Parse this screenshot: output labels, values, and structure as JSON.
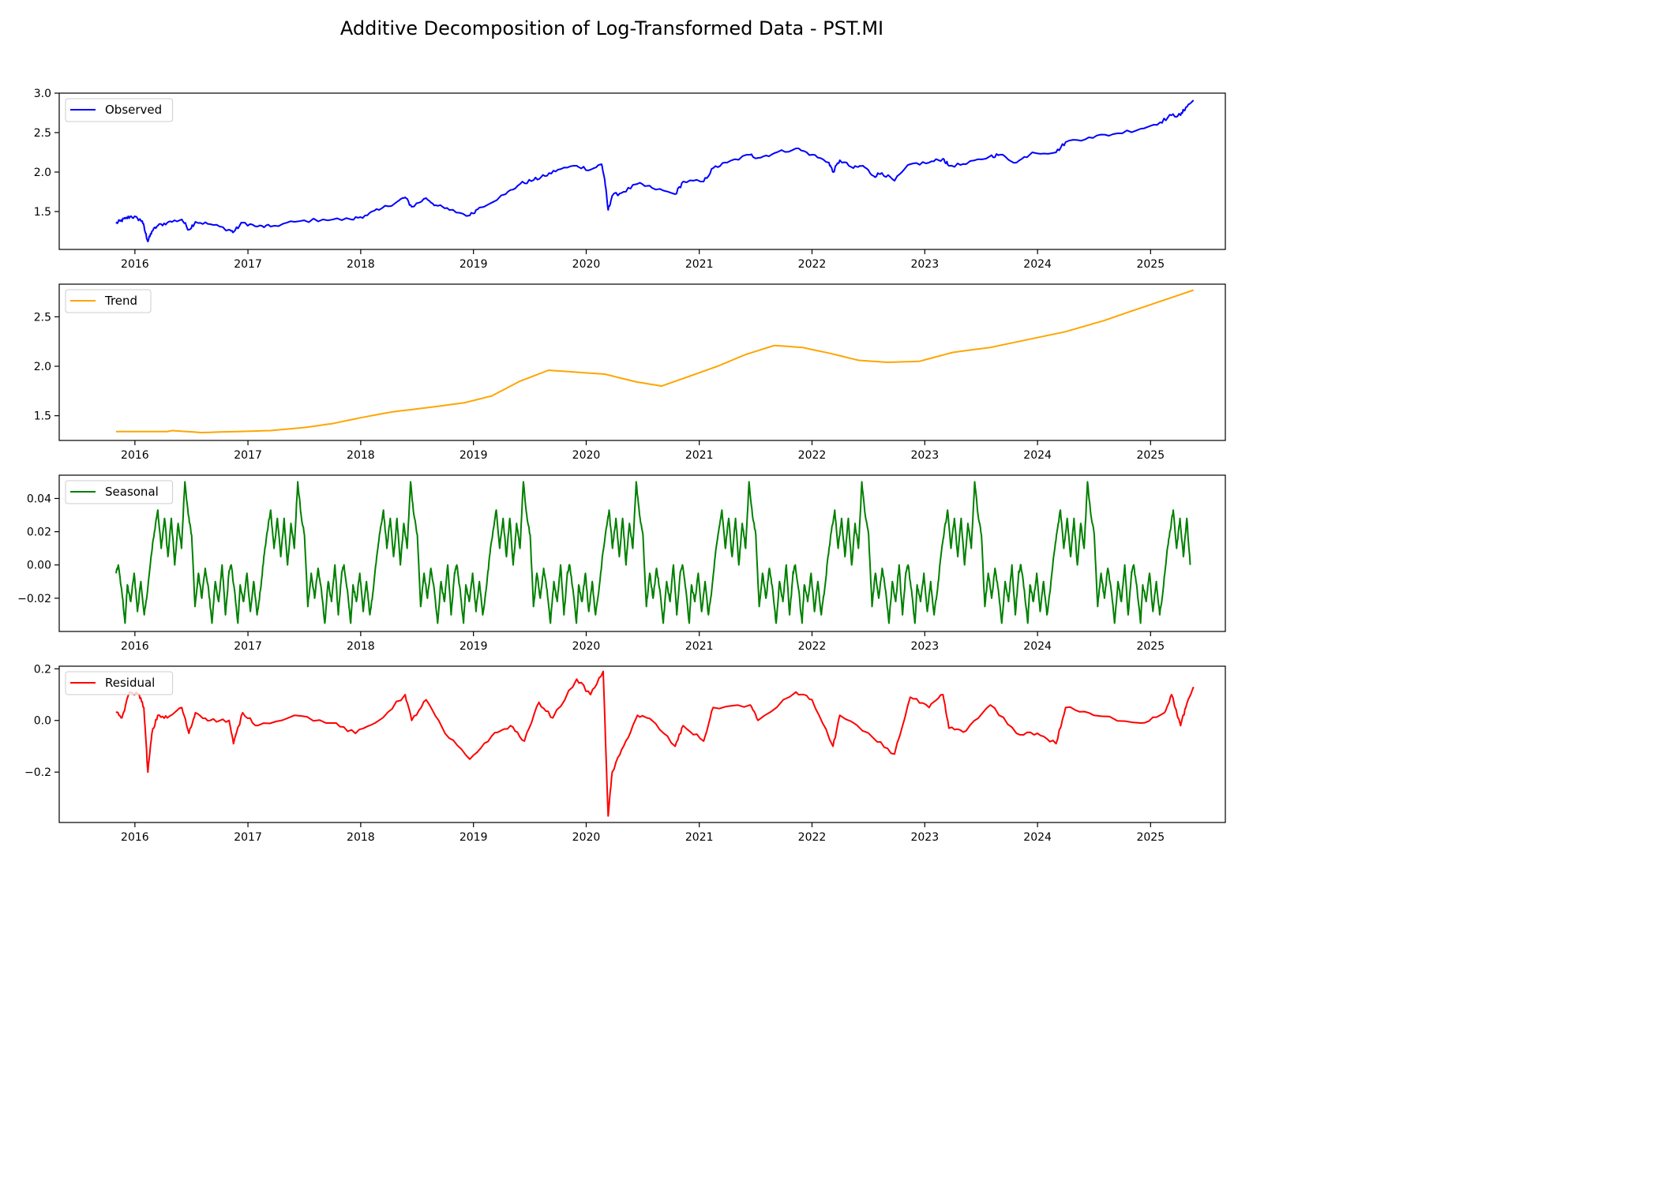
{
  "title": "Additive Decomposition of Log-Transformed Data - PST.MI",
  "chart_data": [
    {
      "type": "line",
      "name": "Observed",
      "color": "#0000ff",
      "legend": "upper-left",
      "xlim": [
        "2015-05-01",
        "2025-08-31"
      ],
      "ylim": [
        1.02,
        3.0
      ],
      "yticks": [
        1.5,
        2.0,
        2.5,
        3.0
      ],
      "ytick_labels": [
        "1.5",
        "2.0",
        "2.5",
        "3.0"
      ],
      "xticks": [
        "2016",
        "2017",
        "2018",
        "2019",
        "2020",
        "2021",
        "2022",
        "2023",
        "2024",
        "2025"
      ],
      "points": [
        [
          "2015-11-01",
          1.35
        ],
        [
          "2015-11-15",
          1.38
        ],
        [
          "2015-12-01",
          1.41
        ],
        [
          "2015-12-20",
          1.44
        ],
        [
          "2016-01-10",
          1.41
        ],
        [
          "2016-01-25",
          1.38
        ],
        [
          "2016-02-05",
          1.22
        ],
        [
          "2016-02-12",
          1.12
        ],
        [
          "2016-02-25",
          1.25
        ],
        [
          "2016-03-15",
          1.32
        ],
        [
          "2016-04-15",
          1.36
        ],
        [
          "2016-06-01",
          1.4
        ],
        [
          "2016-06-24",
          1.27
        ],
        [
          "2016-07-15",
          1.37
        ],
        [
          "2016-09-01",
          1.34
        ],
        [
          "2016-11-01",
          1.27
        ],
        [
          "2016-11-15",
          1.24
        ],
        [
          "2016-12-15",
          1.36
        ],
        [
          "2017-02-01",
          1.31
        ],
        [
          "2017-03-15",
          1.31
        ],
        [
          "2017-06-01",
          1.37
        ],
        [
          "2017-09-01",
          1.4
        ],
        [
          "2017-12-01",
          1.4
        ],
        [
          "2018-01-15",
          1.45
        ],
        [
          "2018-03-01",
          1.52
        ],
        [
          "2018-05-01",
          1.63
        ],
        [
          "2018-05-25",
          1.68
        ],
        [
          "2018-06-15",
          1.56
        ],
        [
          "2018-08-01",
          1.67
        ],
        [
          "2018-09-01",
          1.58
        ],
        [
          "2018-10-15",
          1.52
        ],
        [
          "2018-12-20",
          1.45
        ],
        [
          "2019-01-20",
          1.55
        ],
        [
          "2019-04-15",
          1.72
        ],
        [
          "2019-06-01",
          1.85
        ],
        [
          "2019-07-15",
          1.9
        ],
        [
          "2019-08-20",
          1.95
        ],
        [
          "2019-10-01",
          2.03
        ],
        [
          "2019-12-01",
          2.08
        ],
        [
          "2020-01-15",
          2.03
        ],
        [
          "2020-02-20",
          2.1
        ],
        [
          "2020-03-01",
          1.9
        ],
        [
          "2020-03-12",
          1.52
        ],
        [
          "2020-03-25",
          1.7
        ],
        [
          "2020-05-01",
          1.75
        ],
        [
          "2020-06-15",
          1.85
        ],
        [
          "2020-08-01",
          1.8
        ],
        [
          "2020-10-15",
          1.72
        ],
        [
          "2020-11-10",
          1.88
        ],
        [
          "2021-01-15",
          1.88
        ],
        [
          "2021-02-15",
          2.05
        ],
        [
          "2021-04-01",
          2.12
        ],
        [
          "2021-06-15",
          2.22
        ],
        [
          "2021-07-10",
          2.18
        ],
        [
          "2021-09-01",
          2.24
        ],
        [
          "2021-11-10",
          2.3
        ],
        [
          "2022-01-01",
          2.22
        ],
        [
          "2022-02-25",
          2.12
        ],
        [
          "2022-03-10",
          2.0
        ],
        [
          "2022-04-01",
          2.15
        ],
        [
          "2022-05-15",
          2.05
        ],
        [
          "2022-06-15",
          2.08
        ],
        [
          "2022-07-20",
          1.95
        ],
        [
          "2022-08-15",
          1.99
        ],
        [
          "2022-09-25",
          1.89
        ],
        [
          "2022-11-15",
          2.1
        ],
        [
          "2023-01-15",
          2.12
        ],
        [
          "2023-03-01",
          2.17
        ],
        [
          "2023-03-20",
          2.08
        ],
        [
          "2023-05-15",
          2.1
        ],
        [
          "2023-07-31",
          2.2
        ],
        [
          "2023-09-01",
          2.22
        ],
        [
          "2023-10-25",
          2.12
        ],
        [
          "2023-12-15",
          2.25
        ],
        [
          "2024-03-01",
          2.25
        ],
        [
          "2024-04-01",
          2.38
        ],
        [
          "2024-06-15",
          2.44
        ],
        [
          "2024-09-01",
          2.48
        ],
        [
          "2024-12-01",
          2.55
        ],
        [
          "2025-02-01",
          2.63
        ],
        [
          "2025-03-10",
          2.72
        ],
        [
          "2025-04-08",
          2.72
        ],
        [
          "2025-04-25",
          2.82
        ],
        [
          "2025-05-20",
          2.91
        ]
      ]
    },
    {
      "type": "line",
      "name": "Trend",
      "color": "#ffa500",
      "legend": "upper-left",
      "xlim": [
        "2015-05-01",
        "2025-08-31"
      ],
      "ylim": [
        1.25,
        2.83
      ],
      "yticks": [
        1.5,
        2.0,
        2.5
      ],
      "ytick_labels": [
        "1.5",
        "2.0",
        "2.5"
      ],
      "xticks": [
        "2016",
        "2017",
        "2018",
        "2019",
        "2020",
        "2021",
        "2022",
        "2023",
        "2024",
        "2025"
      ],
      "points": [
        [
          "2015-11-01",
          1.34
        ],
        [
          "2016-04-15",
          1.34
        ],
        [
          "2016-05-01",
          1.35
        ],
        [
          "2016-08-01",
          1.33
        ],
        [
          "2016-12-01",
          1.34
        ],
        [
          "2017-03-15",
          1.35
        ],
        [
          "2017-07-01",
          1.38
        ],
        [
          "2017-10-01",
          1.42
        ],
        [
          "2018-01-01",
          1.48
        ],
        [
          "2018-04-15",
          1.54
        ],
        [
          "2018-08-01",
          1.58
        ],
        [
          "2018-12-01",
          1.63
        ],
        [
          "2019-03-01",
          1.7
        ],
        [
          "2019-06-01",
          1.85
        ],
        [
          "2019-09-01",
          1.96
        ],
        [
          "2019-12-01",
          1.94
        ],
        [
          "2020-03-01",
          1.92
        ],
        [
          "2020-06-15",
          1.84
        ],
        [
          "2020-09-01",
          1.8
        ],
        [
          "2020-12-01",
          1.9
        ],
        [
          "2021-03-01",
          2.0
        ],
        [
          "2021-06-01",
          2.12
        ],
        [
          "2021-09-01",
          2.21
        ],
        [
          "2021-12-01",
          2.19
        ],
        [
          "2022-03-01",
          2.13
        ],
        [
          "2022-06-01",
          2.06
        ],
        [
          "2022-09-01",
          2.04
        ],
        [
          "2022-12-15",
          2.05
        ],
        [
          "2023-04-01",
          2.14
        ],
        [
          "2023-08-01",
          2.19
        ],
        [
          "2023-12-01",
          2.27
        ],
        [
          "2024-04-01",
          2.35
        ],
        [
          "2024-08-01",
          2.46
        ],
        [
          "2024-12-01",
          2.59
        ],
        [
          "2025-05-20",
          2.77
        ]
      ]
    },
    {
      "type": "line",
      "name": "Seasonal",
      "color": "#008000",
      "legend": "upper-left",
      "xlim": [
        "2015-05-01",
        "2025-08-31"
      ],
      "ylim": [
        -0.04,
        0.054
      ],
      "yticks": [
        -0.02,
        0.0,
        0.02,
        0.04
      ],
      "ytick_labels": [
        "−0.02",
        "0.00",
        "0.02",
        "0.04"
      ],
      "xticks": [
        "2016",
        "2017",
        "2018",
        "2019",
        "2020",
        "2021",
        "2022",
        "2023",
        "2024",
        "2025"
      ],
      "period_start": "2015-11-01",
      "period_end": "2025-05-20",
      "cycle": [
        [
          0.0,
          -0.005
        ],
        [
          0.02,
          0.0
        ],
        [
          0.05,
          -0.015
        ],
        [
          0.08,
          -0.035
        ],
        [
          0.1,
          -0.012
        ],
        [
          0.13,
          -0.022
        ],
        [
          0.16,
          -0.005
        ],
        [
          0.19,
          -0.028
        ],
        [
          0.22,
          -0.01
        ],
        [
          0.25,
          -0.03
        ],
        [
          0.28,
          -0.015
        ],
        [
          0.31,
          0.005
        ],
        [
          0.34,
          0.02
        ],
        [
          0.37,
          0.033
        ],
        [
          0.4,
          0.01
        ],
        [
          0.43,
          0.028
        ],
        [
          0.46,
          0.005
        ],
        [
          0.49,
          0.028
        ],
        [
          0.52,
          0.0
        ],
        [
          0.55,
          0.025
        ],
        [
          0.58,
          0.01
        ],
        [
          0.61,
          0.05
        ],
        [
          0.64,
          0.03
        ],
        [
          0.67,
          0.018
        ],
        [
          0.7,
          -0.025
        ],
        [
          0.73,
          -0.005
        ],
        [
          0.76,
          -0.02
        ],
        [
          0.79,
          -0.002
        ],
        [
          0.82,
          -0.015
        ],
        [
          0.85,
          -0.035
        ],
        [
          0.88,
          -0.01
        ],
        [
          0.91,
          -0.022
        ],
        [
          0.94,
          0.0
        ],
        [
          0.97,
          -0.03
        ],
        [
          1.0,
          -0.005
        ]
      ]
    },
    {
      "type": "line",
      "name": "Residual",
      "color": "#ff0000",
      "legend": "upper-left",
      "xlim": [
        "2015-05-01",
        "2025-08-31"
      ],
      "ylim": [
        -0.395,
        0.21
      ],
      "yticks": [
        -0.2,
        0.0,
        0.2
      ],
      "ytick_labels": [
        "−0.2",
        "0.0",
        "0.2"
      ],
      "xticks": [
        "2016",
        "2017",
        "2018",
        "2019",
        "2020",
        "2021",
        "2022",
        "2023",
        "2024",
        "2025"
      ],
      "points": [
        [
          "2015-11-01",
          0.03
        ],
        [
          "2015-11-20",
          0.01
        ],
        [
          "2015-12-15",
          0.11
        ],
        [
          "2016-01-15",
          0.1
        ],
        [
          "2016-01-30",
          0.05
        ],
        [
          "2016-02-12",
          -0.2
        ],
        [
          "2016-02-25",
          -0.05
        ],
        [
          "2016-03-15",
          0.02
        ],
        [
          "2016-04-15",
          0.01
        ],
        [
          "2016-06-01",
          0.05
        ],
        [
          "2016-06-24",
          -0.05
        ],
        [
          "2016-07-15",
          0.03
        ],
        [
          "2016-09-01",
          0.0
        ],
        [
          "2016-11-01",
          0.0
        ],
        [
          "2016-11-15",
          -0.09
        ],
        [
          "2016-12-15",
          0.03
        ],
        [
          "2017-02-01",
          -0.02
        ],
        [
          "2017-06-01",
          0.02
        ],
        [
          "2017-10-01",
          -0.01
        ],
        [
          "2017-12-15",
          -0.05
        ],
        [
          "2018-03-01",
          0.0
        ],
        [
          "2018-05-25",
          0.1
        ],
        [
          "2018-06-15",
          0.0
        ],
        [
          "2018-08-01",
          0.08
        ],
        [
          "2018-10-01",
          -0.05
        ],
        [
          "2018-12-20",
          -0.15
        ],
        [
          "2019-03-01",
          -0.06
        ],
        [
          "2019-05-01",
          -0.02
        ],
        [
          "2019-06-15",
          -0.08
        ],
        [
          "2019-08-01",
          0.07
        ],
        [
          "2019-09-15",
          0.01
        ],
        [
          "2019-12-01",
          0.16
        ],
        [
          "2020-01-15",
          0.1
        ],
        [
          "2020-02-25",
          0.19
        ],
        [
          "2020-03-12",
          -0.37
        ],
        [
          "2020-03-25",
          -0.2
        ],
        [
          "2020-05-01",
          -0.1
        ],
        [
          "2020-06-15",
          0.02
        ],
        [
          "2020-08-01",
          0.0
        ],
        [
          "2020-10-15",
          -0.1
        ],
        [
          "2020-11-10",
          -0.02
        ],
        [
          "2021-01-15",
          -0.08
        ],
        [
          "2021-02-15",
          0.05
        ],
        [
          "2021-06-15",
          0.06
        ],
        [
          "2021-07-10",
          0.0
        ],
        [
          "2021-11-10",
          0.11
        ],
        [
          "2022-01-01",
          0.08
        ],
        [
          "2022-03-10",
          -0.1
        ],
        [
          "2022-04-01",
          0.02
        ],
        [
          "2022-07-20",
          -0.07
        ],
        [
          "2022-09-25",
          -0.13
        ],
        [
          "2022-11-15",
          0.09
        ],
        [
          "2023-01-15",
          0.05
        ],
        [
          "2023-03-01",
          0.1
        ],
        [
          "2023-03-20",
          -0.03
        ],
        [
          "2023-05-15",
          -0.04
        ],
        [
          "2023-08-01",
          0.06
        ],
        [
          "2023-10-25",
          -0.05
        ],
        [
          "2024-01-01",
          -0.05
        ],
        [
          "2024-03-01",
          -0.09
        ],
        [
          "2024-04-01",
          0.05
        ],
        [
          "2024-07-01",
          0.02
        ],
        [
          "2024-12-01",
          -0.01
        ],
        [
          "2025-02-15",
          0.03
        ],
        [
          "2025-03-10",
          0.1
        ],
        [
          "2025-04-08",
          -0.02
        ],
        [
          "2025-04-25",
          0.05
        ],
        [
          "2025-05-20",
          0.13
        ]
      ]
    }
  ]
}
